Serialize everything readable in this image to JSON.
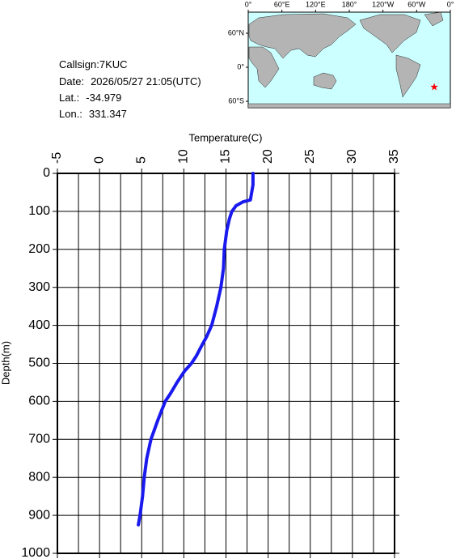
{
  "chart_data": {
    "type": "line",
    "x_label": "Temperature(C)",
    "y_label": "Depth(m)",
    "xlim": [
      -5,
      35
    ],
    "xticks": [
      -5,
      0,
      5,
      10,
      15,
      20,
      25,
      30,
      35
    ],
    "xminorticks": [
      -2.5,
      2.5,
      7.5,
      12.5,
      17.5,
      22.5,
      27.5,
      32.5
    ],
    "ylim": [
      0,
      1000
    ],
    "yticks": [
      0,
      100,
      200,
      300,
      400,
      500,
      600,
      700,
      800,
      900,
      1000
    ],
    "y_inverted": true,
    "grid": true,
    "color": "#1a1aee",
    "x": [
      18.2,
      18.2,
      17.9,
      17.0,
      16.2,
      15.7,
      15.4,
      15.1,
      14.8,
      14.7,
      14.4,
      13.9,
      13.3,
      12.7,
      12.2,
      11.5,
      10.9,
      10.1,
      9.2,
      8.4,
      7.8,
      6.9,
      6.1,
      5.6,
      5.3,
      5.1,
      4.8,
      4.6
    ],
    "y": [
      0,
      30,
      70,
      75,
      85,
      100,
      120,
      150,
      200,
      250,
      300,
      350,
      400,
      430,
      450,
      480,
      500,
      520,
      550,
      580,
      600,
      650,
      700,
      750,
      800,
      850,
      900,
      925
    ]
  },
  "station": {
    "callsign": {
      "label": "Callsign:",
      "value": "7KUC"
    },
    "date": {
      "label": "Date:",
      "value": "2026/05/27 21:05(UTC)"
    },
    "lat": {
      "label": "Lat.:",
      "value": -34.979
    },
    "lon": {
      "label": "Lon.:",
      "value": 331.347
    }
  },
  "map": {
    "lon_ticks": [
      {
        "value": 0,
        "label": "0°"
      },
      {
        "value": 60,
        "label": "60°E"
      },
      {
        "value": 120,
        "label": "120°E"
      },
      {
        "value": 180,
        "label": "180°"
      },
      {
        "value": 240,
        "label": "120°W"
      },
      {
        "value": 300,
        "label": "60°W"
      },
      {
        "value": 360,
        "label": "0°"
      }
    ],
    "lat_ticks": [
      {
        "value": 60,
        "label": "60°N"
      },
      {
        "value": 0,
        "label": "0°"
      },
      {
        "value": -60,
        "label": "60°S"
      }
    ],
    "marker_color": "#ff0000"
  }
}
